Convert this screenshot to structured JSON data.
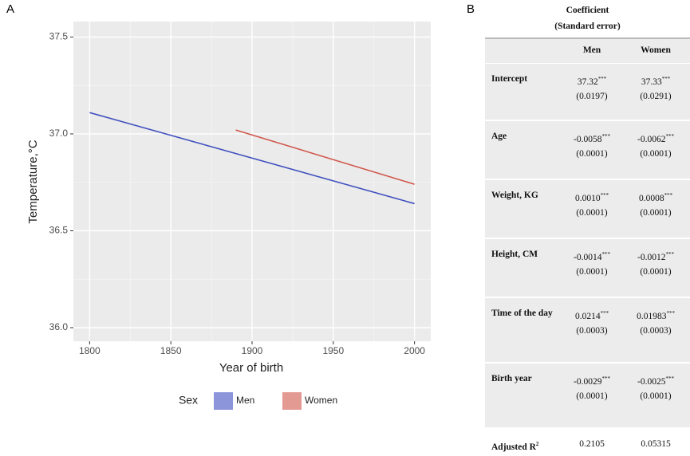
{
  "panel_labels": [
    "A",
    "B"
  ],
  "chart_data": {
    "type": "line",
    "xlabel": "Year of birth",
    "ylabel": "Temperature,°C",
    "xlim": [
      1790,
      2010
    ],
    "xticks": [
      1800,
      1850,
      1900,
      1950,
      2000
    ],
    "ylim": [
      35.93,
      37.58
    ],
    "yticks": [
      {
        "value": 36,
        "label": "36.0"
      },
      36.5,
      {
        "value": 37,
        "label": "37.0"
      },
      37.5
    ],
    "grid": true,
    "legend": "bottom",
    "legend_title": "Sex",
    "series": [
      {
        "name": "Men",
        "color": "#3f4fbf",
        "x": [
          1800,
          2000
        ],
        "values": [
          37.11,
          36.64
        ]
      },
      {
        "name": "Women",
        "color": "#d0574b",
        "x": [
          1890,
          2000
        ],
        "values": [
          37.02,
          36.74
        ]
      }
    ]
  },
  "table": {
    "header": [
      "Coefficient",
      "(Standard error)"
    ],
    "columns": [
      "Men",
      "Women"
    ],
    "rows": [
      {
        "label": "Intercept",
        "cells": [
          {
            "coef": "37.32",
            "sig": "***",
            "se": "(0.0197)"
          },
          {
            "coef": "37.33",
            "sig": "***",
            "se": "(0.0291)"
          }
        ]
      },
      {
        "label": "Age",
        "cells": [
          {
            "coef": "-0.0058",
            "sig": "***",
            "se": "(0.0001)"
          },
          {
            "coef": "-0.0062",
            "sig": "***",
            "se": "(0.0001)"
          }
        ]
      },
      {
        "label": "Weight, KG",
        "cells": [
          {
            "coef": "0.0010",
            "sig": "***",
            "se": "(0.0001)"
          },
          {
            "coef": "0.0008",
            "sig": "***",
            "se": "(0.0001)"
          }
        ]
      },
      {
        "label": "Height, CM",
        "cells": [
          {
            "coef": "-0.0014",
            "sig": "***",
            "se": "(0.0001)"
          },
          {
            "coef": "-0.0012",
            "sig": "***",
            "se": "(0.0001)"
          }
        ]
      },
      {
        "label": "Time of the day",
        "cells": [
          {
            "coef": "0.0214",
            "sig": "***",
            "se": "(0.0003)"
          },
          {
            "coef": "0.01983",
            "sig": "***",
            "se": "(0.0003)"
          }
        ]
      },
      {
        "label": "Birth year",
        "cells": [
          {
            "coef": "-0.0029",
            "sig": "***",
            "se": "(0.0001)"
          },
          {
            "coef": "-0.0025",
            "sig": "***",
            "se": "(0.0001)"
          }
        ]
      },
      {
        "label": "Adjusted R",
        "label_sup": "2",
        "cells": [
          {
            "coef": "0.2105"
          },
          {
            "coef": "0.05315"
          }
        ]
      }
    ]
  }
}
